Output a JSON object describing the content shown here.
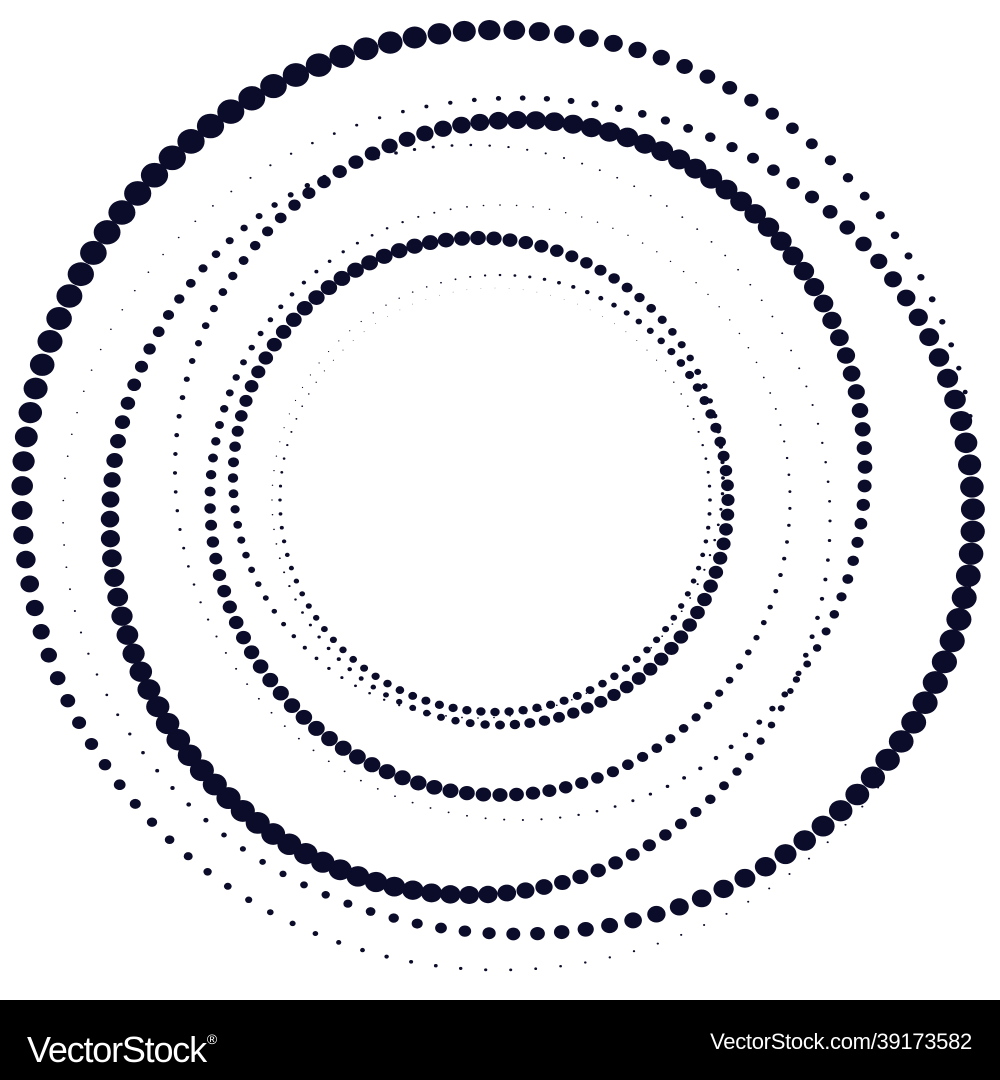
{
  "artwork": {
    "subject": "halftone-dotted-concentric-swirl-rings",
    "dot_color": "#0b0b2a",
    "background_color": "#ffffff"
  },
  "footer": {
    "background_color": "#000000",
    "text_color": "#ffffff",
    "brand": "VectorStock",
    "brand_mark": "®",
    "credit": "VectorStock.com/39173582"
  }
}
